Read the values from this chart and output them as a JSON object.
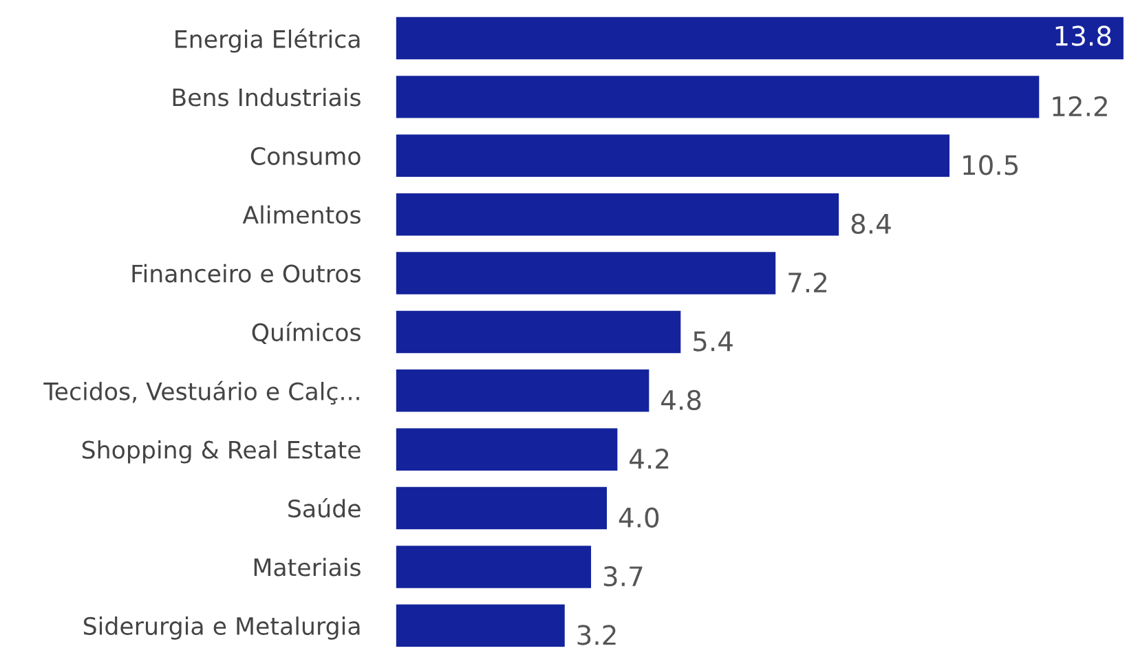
{
  "chart_data": {
    "type": "bar",
    "orientation": "horizontal",
    "categories": [
      "Energia Elétrica",
      "Bens Industriais",
      "Consumo",
      "Alimentos",
      "Financeiro e Outros",
      "Químicos",
      "Tecidos, Vestuário e Calç...",
      "Shopping & Real Estate",
      "Saúde",
      "Materiais",
      "Siderurgia e Metalurgia"
    ],
    "values": [
      13.8,
      12.2,
      10.5,
      8.4,
      7.2,
      5.4,
      4.8,
      4.2,
      4.0,
      3.7,
      3.2
    ],
    "value_labels": [
      "13.8",
      "12.2",
      "10.5",
      "8.4",
      "7.2",
      "5.4",
      "4.8",
      "4.2",
      "4.0",
      "3.7",
      "3.2"
    ],
    "color": "#14239c"
  }
}
